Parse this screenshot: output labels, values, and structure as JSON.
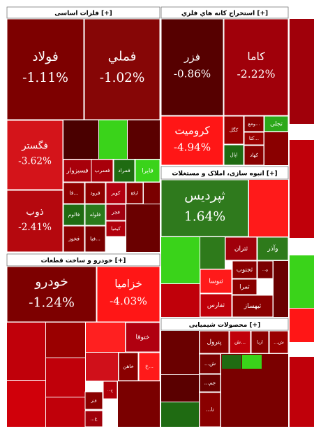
{
  "chart_data": {
    "type": "treemap",
    "groups": [
      {
        "title": "فلزات اساسی [+]",
        "tiles": [
          {
            "label": "فولاد",
            "value": -1.11,
            "value_label": "-1.11%",
            "color": "#7d0000"
          },
          {
            "label": "فملي",
            "value": -1.02,
            "value_label": "-1.02%",
            "color": "#860606"
          },
          {
            "label": "فگستر",
            "value": -3.62,
            "value_label": "-3.62%",
            "color": "#d4141a"
          },
          {
            "label": "ذوب",
            "value": -2.41,
            "value_label": "-2.41%",
            "color": "#b5080e"
          },
          {
            "label": "فسبزوار",
            "color": "#a8000a"
          },
          {
            "label": "فسرب",
            "color": "#a8000a"
          },
          {
            "label": "فمراد",
            "color": "#1f6b12"
          },
          {
            "label": "فايرا",
            "color": "#3ad31a"
          },
          {
            "label": "فا...",
            "color": "#8e0000"
          },
          {
            "label": "فرود",
            "color": "#8e0000"
          },
          {
            "label": "کویر",
            "color": "#b30010"
          },
          {
            "label": "ارفع",
            "color": "#8a0000"
          },
          {
            "label": "فالوم",
            "color": "#1f6b12"
          },
          {
            "label": "فلوله",
            "color": "#2a7a1b"
          },
          {
            "label": "فجر",
            "color": "#a00010"
          },
          {
            "label": "کیمیا",
            "color": "#b0000c"
          },
          {
            "label": "فخوز",
            "color": "#8a0000"
          },
          {
            "label": "فبا...",
            "color": "#7a0000"
          }
        ]
      },
      {
        "title": "استخراج کانه هاي فلزي [+]",
        "tiles": [
          {
            "label": "فزر",
            "value": -0.86,
            "value_label": "-0.86%",
            "color": "#560000"
          },
          {
            "label": "کاما",
            "value": -2.22,
            "value_label": "-2.22%",
            "color": "#a0000a"
          },
          {
            "label": "کرومیت",
            "value": -4.94,
            "value_label": "-4.94%",
            "color": "#ff1616"
          },
          {
            "label": "کگل",
            "color": "#9a0000"
          },
          {
            "label": "ومع...",
            "color": "#8a0000"
          },
          {
            "label": "تجلی",
            "color": "#2ca81a"
          },
          {
            "label": "کتا...",
            "color": "#9a0000"
          },
          {
            "label": "اپال",
            "color": "#1f6b12"
          },
          {
            "label": "کهاد",
            "color": "#8a0000"
          }
        ]
      },
      {
        "title": "انبوه سازی، املاک و مستغلات [+]",
        "tiles": [
          {
            "label": "ثپردیس",
            "value": 1.64,
            "value_label": "1.64%",
            "color": "#2f7a1d"
          },
          {
            "label": "ثتران",
            "color": "#a0000a"
          },
          {
            "label": "وآذر",
            "color": "#2e7a1b"
          },
          {
            "label": "ثجنوب",
            "color": "#8a0000"
          },
          {
            "label": "...و",
            "color": "#7a0000"
          },
          {
            "label": "ثنوسا",
            "color": "#ff1a1a"
          },
          {
            "label": "ثمرا",
            "color": "#8a0000"
          },
          {
            "label": "ثفارس",
            "color": "#c0000a"
          },
          {
            "label": "ثبهساز",
            "color": "#8a0000"
          }
        ]
      },
      {
        "title": "خودرو و ساخت قطعات [+]",
        "tiles": [
          {
            "label": "خودرو",
            "value": -1.24,
            "value_label": "-1.24%",
            "color": "#7d0000"
          },
          {
            "label": "خزامیا",
            "value": -4.03,
            "value_label": "-4.03%",
            "color": "#ff1616"
          },
          {
            "label": "ختوقا",
            "color": "#b00010"
          },
          {
            "label": "خاهن",
            "color": "#8a0000"
          },
          {
            "label": "خ...",
            "color": "#ff1a1a"
          },
          {
            "label": "...خ",
            "color": "#b0000a"
          },
          {
            "label": "فنر",
            "color": "#8a0000"
          },
          {
            "label": "...غ",
            "color": "#a0000a"
          }
        ]
      },
      {
        "title": "محصولات شیمیایی [+]",
        "tiles": [
          {
            "label": "پترول",
            "color": "#8a0000"
          },
          {
            "label": "ش...",
            "color": "#c0000a"
          },
          {
            "label": "اریا",
            "color": "#8a0000"
          },
          {
            "label": "...ش",
            "color": "#9a0000"
          },
          {
            "label": "...ش",
            "color": "#7a0000"
          },
          {
            "label": "...جم",
            "color": "#6a0000"
          },
          {
            "label": "...تا",
            "color": "#8a0000"
          }
        ]
      }
    ]
  }
}
